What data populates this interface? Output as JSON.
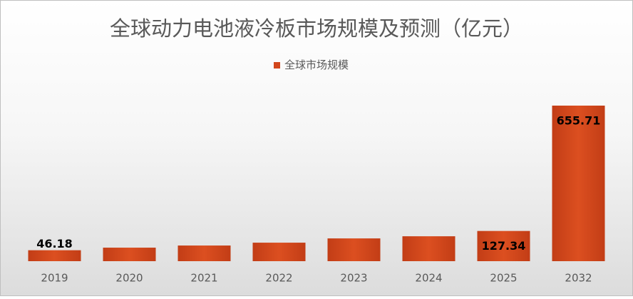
{
  "chart_data": {
    "type": "bar",
    "title": "全球动力电池液冷板市场规模及预测（亿元）",
    "categories": [
      "2019",
      "2020",
      "2021",
      "2022",
      "2023",
      "2024",
      "2025",
      "2032"
    ],
    "series": [
      {
        "name": "全球市场规模",
        "color": "#d2461c",
        "values": [
          46.18,
          57,
          66,
          78,
          96,
          105,
          127.34,
          655.71
        ],
        "value_labels": [
          "46.18",
          null,
          null,
          null,
          null,
          null,
          "127.34",
          "655.71"
        ]
      }
    ],
    "legend": "top"
  }
}
